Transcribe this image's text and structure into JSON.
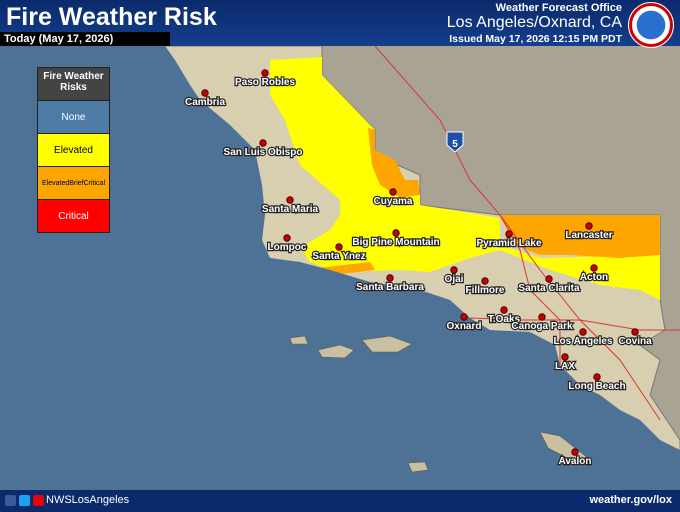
{
  "header": {
    "title": "Fire Weather Risk",
    "date": "Today (May 17, 2026)",
    "office": "Weather Forecast Office",
    "location": "Los Angeles/Oxnard, CA",
    "issued": "Issued May 17, 2026 12:15 PM PDT"
  },
  "legend": {
    "title": "Fire Weather Risks",
    "items": [
      {
        "label": "None",
        "color": "#4d7ba6"
      },
      {
        "label": "Elevated",
        "color": "#ffff00"
      },
      {
        "label": "ElevatedBriefCritical",
        "color": "#ffa500"
      },
      {
        "label": "Critical",
        "color": "#ff0000"
      }
    ]
  },
  "map": {
    "highway": "5",
    "cities": [
      "Paso Robles",
      "Cambria",
      "San Luis Obispo",
      "Santa Maria",
      "Cuyama",
      "Lompoc",
      "Santa Ynez",
      "Big Pine Mountain",
      "Pyramid Lake",
      "Lancaster",
      "Acton",
      "Santa Clarita",
      "Fillmore",
      "Ojai",
      "Santa Barbara",
      "Oxnard",
      "T.Oaks",
      "Canoga Park",
      "Los Angeles",
      "Covina",
      "LAX",
      "Long Beach",
      "Avalon"
    ]
  },
  "footer": {
    "handle": "NWSLosAngeles",
    "website": "weather.gov/lox"
  }
}
